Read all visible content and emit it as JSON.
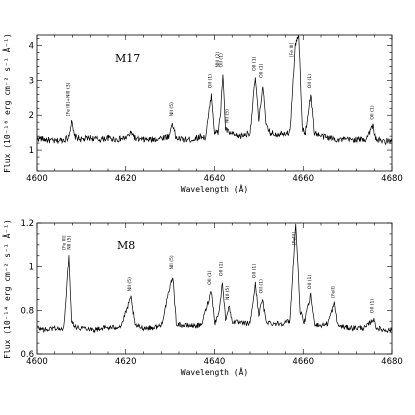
{
  "chart_data": [
    {
      "type": "line",
      "object": "M17",
      "xlabel": "Wavelength (Å)",
      "ylabel": "Flux (10⁻¹⁶ erg cm⁻² s⁻¹ Å⁻¹)",
      "xlim": [
        4600,
        4680
      ],
      "ylim": [
        0.4,
        4.3
      ],
      "xticks": [
        4600,
        4620,
        4640,
        4660,
        4680
      ],
      "yticks": [
        1,
        2,
        3,
        4
      ],
      "series": [
        {
          "points": [
            [
              4600.0,
              1.35
            ],
            [
              4602.0,
              1.3
            ],
            [
              4604.0,
              1.25
            ],
            [
              4606.0,
              1.3
            ],
            [
              4607.0,
              1.35
            ],
            [
              4607.8,
              1.8
            ],
            [
              4608.4,
              1.4
            ],
            [
              4610,
              1.3
            ],
            [
              4612,
              1.35
            ],
            [
              4614,
              1.3
            ],
            [
              4616,
              1.35
            ],
            [
              4618,
              1.3
            ],
            [
              4620,
              1.35
            ],
            [
              4621.4,
              1.5
            ],
            [
              4622.3,
              1.3
            ],
            [
              4624,
              1.3
            ],
            [
              4626,
              1.3
            ],
            [
              4628,
              1.35
            ],
            [
              4629.8,
              1.4
            ],
            [
              4630.5,
              1.8
            ],
            [
              4631.3,
              1.35
            ],
            [
              4633,
              1.3
            ],
            [
              4635,
              1.3
            ],
            [
              4637,
              1.4
            ],
            [
              4638,
              1.35
            ],
            [
              4639.3,
              2.6
            ],
            [
              4640.0,
              1.5
            ],
            [
              4640.8,
              1.5
            ],
            [
              4641.4,
              2.1
            ],
            [
              4641.9,
              3.2
            ],
            [
              4642.5,
              1.6
            ],
            [
              4643.3,
              1.5
            ],
            [
              4644,
              1.45
            ],
            [
              4645,
              1.4
            ],
            [
              4646,
              1.4
            ],
            [
              4647,
              1.45
            ],
            [
              4648,
              1.5
            ],
            [
              4649.2,
              3.1
            ],
            [
              4650.0,
              1.8
            ],
            [
              4650.9,
              2.9
            ],
            [
              4651.6,
              1.7
            ],
            [
              4652.5,
              1.5
            ],
            [
              4654,
              1.45
            ],
            [
              4655.5,
              1.5
            ],
            [
              4657.0,
              1.5
            ],
            [
              4658.2,
              4.0
            ],
            [
              4659.0,
              4.3
            ],
            [
              4659.8,
              1.6
            ],
            [
              4660.5,
              1.5
            ],
            [
              4661.7,
              2.6
            ],
            [
              4662.5,
              1.5
            ],
            [
              4664,
              1.4
            ],
            [
              4666,
              1.35
            ],
            [
              4668,
              1.3
            ],
            [
              4670,
              1.3
            ],
            [
              4672,
              1.3
            ],
            [
              4674,
              1.3
            ],
            [
              4675.7,
              1.7
            ],
            [
              4676.4,
              1.3
            ],
            [
              4678,
              1.25
            ],
            [
              4680,
              1.25
            ]
          ]
        }
      ],
      "annotations": [
        {
          "x": 4607.3,
          "text": "[Fe III]+NIII (3)"
        },
        {
          "x": 4630.6,
          "text": "NII (5)"
        },
        {
          "x": 4639.3,
          "text": "OII (1)"
        },
        {
          "x": 4641.0,
          "text": "NIII (2)"
        },
        {
          "x": 4641.8,
          "text": "OII (1)"
        },
        {
          "x": 4643.2,
          "text": "NII (5)"
        },
        {
          "x": 4649.2,
          "text": "OII (1)"
        },
        {
          "x": 4650.8,
          "text": "OII (1)"
        },
        {
          "x": 4657.7,
          "text": "[Fe III]"
        },
        {
          "x": 4661.7,
          "text": "OII (1)"
        },
        {
          "x": 4675.8,
          "text": "OII (1)"
        }
      ]
    },
    {
      "type": "line",
      "object": "M8",
      "xlabel": "Wavelength (Å)",
      "ylabel": "Flux (10⁻¹⁴ erg cm⁻² s⁻¹ Å⁻¹)",
      "xlim": [
        4600,
        4680
      ],
      "ylim": [
        0.6,
        1.2
      ],
      "xticks": [
        4600,
        4620,
        4640,
        4660,
        4680
      ],
      "yticks": [
        0.6,
        0.8,
        1,
        1.2
      ],
      "series": [
        {
          "points": [
            [
              4600.0,
              0.72
            ],
            [
              4602.0,
              0.71
            ],
            [
              4604.0,
              0.72
            ],
            [
              4606.0,
              0.71
            ],
            [
              4607.2,
              1.05
            ],
            [
              4607.8,
              0.75
            ],
            [
              4609,
              0.72
            ],
            [
              4611,
              0.72
            ],
            [
              4613,
              0.71
            ],
            [
              4615,
              0.72
            ],
            [
              4617,
              0.72
            ],
            [
              4619,
              0.73
            ],
            [
              4621.2,
              0.86
            ],
            [
              4622.1,
              0.73
            ],
            [
              4624,
              0.72
            ],
            [
              4626,
              0.72
            ],
            [
              4628,
              0.73
            ],
            [
              4630.6,
              0.96
            ],
            [
              4631.4,
              0.74
            ],
            [
              4633,
              0.73
            ],
            [
              4635,
              0.73
            ],
            [
              4637,
              0.73
            ],
            [
              4639.3,
              0.89
            ],
            [
              4640.1,
              0.74
            ],
            [
              4641.1,
              0.8
            ],
            [
              4641.8,
              0.93
            ],
            [
              4642.5,
              0.76
            ],
            [
              4643.3,
              0.82
            ],
            [
              4644.0,
              0.75
            ],
            [
              4646,
              0.74
            ],
            [
              4648,
              0.74
            ],
            [
              4649.2,
              0.92
            ],
            [
              4650.0,
              0.78
            ],
            [
              4650.8,
              0.85
            ],
            [
              4651.6,
              0.75
            ],
            [
              4653,
              0.74
            ],
            [
              4655,
              0.74
            ],
            [
              4657.0,
              0.75
            ],
            [
              4658.3,
              1.2
            ],
            [
              4659.3,
              0.8
            ],
            [
              4660.2,
              0.74
            ],
            [
              4661.7,
              0.87
            ],
            [
              4662.5,
              0.74
            ],
            [
              4664,
              0.73
            ],
            [
              4665.5,
              0.74
            ],
            [
              4667.0,
              0.83
            ],
            [
              4667.8,
              0.73
            ],
            [
              4670,
              0.72
            ],
            [
              4672,
              0.72
            ],
            [
              4674,
              0.72
            ],
            [
              4675.8,
              0.76
            ],
            [
              4676.5,
              0.72
            ],
            [
              4678,
              0.71
            ],
            [
              4680,
              0.71
            ]
          ]
        }
      ],
      "annotations": [
        {
          "x": 4606.4,
          "text": "[Fe III]"
        },
        {
          "x": 4607.6,
          "text": "NII (5)"
        },
        {
          "x": 4621.2,
          "text": "NII (5)"
        },
        {
          "x": 4630.6,
          "text": "NII (5)"
        },
        {
          "x": 4639.2,
          "text": "OII (1)"
        },
        {
          "x": 4641.8,
          "text": "OII (1)"
        },
        {
          "x": 4643.3,
          "text": "NII (5)"
        },
        {
          "x": 4649.2,
          "text": "OII (1)"
        },
        {
          "x": 4650.8,
          "text": "OII (1)"
        },
        {
          "x": 4658.3,
          "text": "[FeIII]"
        },
        {
          "x": 4661.7,
          "text": "OII (1)"
        },
        {
          "x": 4667.0,
          "text": "[FeII]"
        },
        {
          "x": 4675.8,
          "text": "OII (1)"
        }
      ]
    }
  ]
}
